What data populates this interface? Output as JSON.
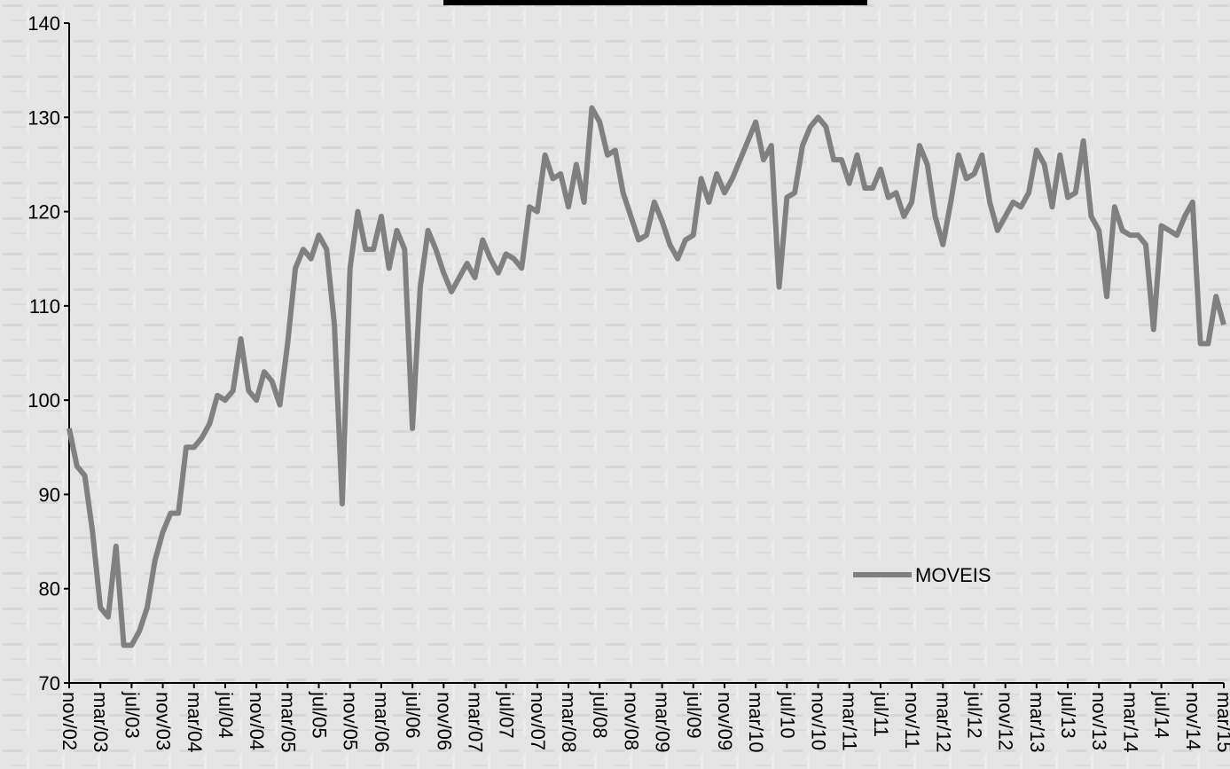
{
  "chart_data": {
    "type": "line",
    "categories": [
      "nov/02",
      null,
      null,
      null,
      "mar/03",
      null,
      null,
      null,
      "jul/03",
      null,
      null,
      null,
      "nov/03",
      null,
      null,
      null,
      "mar/04",
      null,
      null,
      null,
      "jul/04",
      null,
      null,
      null,
      "nov/04",
      null,
      null,
      null,
      "mar/05",
      null,
      null,
      null,
      "jul/05",
      null,
      null,
      null,
      "nov/05",
      null,
      null,
      null,
      "mar/06",
      null,
      null,
      null,
      "jul/06",
      null,
      null,
      null,
      "nov/06",
      null,
      null,
      null,
      "mar/07",
      null,
      null,
      null,
      "jul/07",
      null,
      null,
      null,
      "nov/07",
      null,
      null,
      null,
      "mar/08",
      null,
      null,
      null,
      "jul/08",
      null,
      null,
      null,
      "nov/08",
      null,
      null,
      null,
      "mar/09",
      null,
      null,
      null,
      "jul/09",
      null,
      null,
      null,
      "nov/09",
      null,
      null,
      null,
      "mar/10",
      null,
      null,
      null,
      "jul/10",
      null,
      null,
      null,
      "nov/10",
      null,
      null,
      null,
      "mar/11",
      null,
      null,
      null,
      "jul/11",
      null,
      null,
      null,
      "nov/11",
      null,
      null,
      null,
      "mar/12",
      null,
      null,
      null,
      "jul/12",
      null,
      null,
      null,
      "nov/12",
      null,
      null,
      null,
      "mar/13",
      null,
      null,
      null,
      "jul/13",
      null,
      null,
      null,
      "nov/13",
      null,
      null,
      null,
      "mar/14",
      null,
      null,
      null,
      "jul/14",
      null,
      null,
      null,
      "nov/14",
      null,
      null,
      null,
      "mar/15"
    ],
    "series": [
      {
        "name": "MOVEIS",
        "color": "#808080",
        "values": [
          97,
          93,
          92,
          86,
          78,
          77,
          84.5,
          74,
          74,
          75.5,
          78,
          83,
          86,
          88,
          88,
          95,
          95,
          96,
          97.5,
          100.5,
          100,
          101,
          106.5,
          101,
          100,
          103,
          102,
          99.5,
          106,
          114,
          116,
          115,
          117.5,
          116,
          108,
          89,
          114,
          120,
          116,
          116,
          119.5,
          114,
          118,
          116,
          97,
          112,
          118,
          116,
          113.5,
          111.5,
          113,
          114.5,
          113,
          117,
          115,
          113.5,
          115.5,
          115,
          114,
          120.5,
          120,
          126,
          123.5,
          124,
          120.5,
          125,
          121,
          131,
          129.5,
          126,
          126.5,
          122,
          119.5,
          117,
          117.5,
          121,
          119,
          116.5,
          115,
          117,
          117.5,
          123.5,
          121,
          124,
          122,
          123.5,
          125.5,
          127.5,
          129.5,
          125.5,
          127,
          112,
          121.5,
          122,
          127,
          129,
          130,
          129,
          125.5,
          125.5,
          123,
          126,
          122.5,
          122.5,
          124.5,
          121.5,
          122,
          119.5,
          121,
          127,
          125,
          119.5,
          116.5,
          121,
          126,
          123.5,
          124,
          126,
          121,
          118,
          119.5,
          121,
          120.5,
          122,
          126.5,
          125,
          120.5,
          126,
          121.5,
          122,
          127.5,
          119.5,
          118,
          111,
          120.5,
          118,
          117.5,
          117.5,
          116.5,
          107.5,
          118.5,
          118,
          117.5,
          119.5,
          121,
          106,
          106,
          111,
          108
        ]
      }
    ],
    "ylim": [
      70,
      140
    ],
    "yticks": [
      70,
      80,
      90,
      100,
      110,
      120,
      130,
      140
    ],
    "grid": false
  }
}
